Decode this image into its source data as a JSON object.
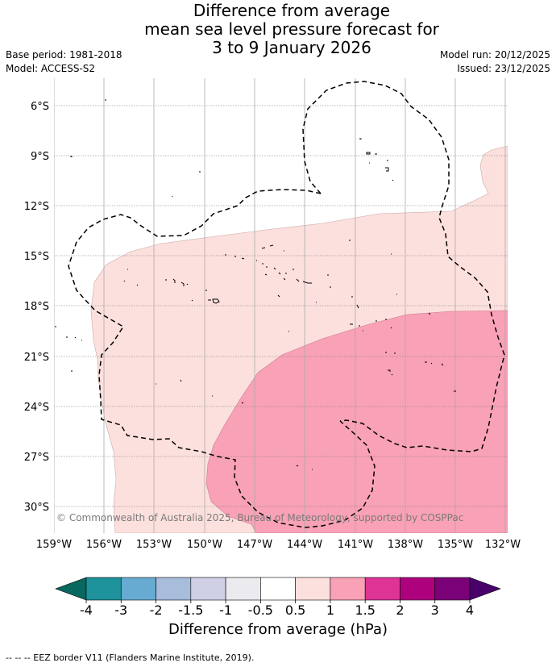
{
  "title": {
    "line1": "Difference from average",
    "line2": "mean sea level pressure forecast for",
    "line3": "3 to 9 January 2026"
  },
  "meta": {
    "base_period": "Base period: 1981-2018",
    "model": "Model: ACCESS-S2",
    "model_run": "Model run: 20/12/2025",
    "issued": "Issued: 23/12/2025"
  },
  "map": {
    "lat_labels": [
      "6°S",
      "9°S",
      "12°S",
      "15°S",
      "18°S",
      "21°S",
      "24°S",
      "27°S",
      "30°S"
    ],
    "lon_labels": [
      "159°W",
      "156°W",
      "153°W",
      "150°W",
      "147°W",
      "144°W",
      "141°W",
      "138°W",
      "135°W",
      "132°W"
    ],
    "copyright": "© Commonwealth of Australia 2025, Bureau of Meteorology, supported by COSPPac",
    "colors": {
      "anomaly_0_5_to_1": "#fce0dd",
      "anomaly_1_to_1_5": "#f9a1b6"
    }
  },
  "colorbar": {
    "title": "Difference from average (hPa)",
    "labels": [
      "-4",
      "-3",
      "-2",
      "-1.5",
      "-1",
      "-0.5",
      "0.5",
      "1",
      "1.5",
      "2",
      "3",
      "4"
    ],
    "colors": [
      "#08675f",
      "#1e939b",
      "#68abd2",
      "#a8bcdc",
      "#cfd0e6",
      "#ebebef",
      "#ffffff",
      "#fce0dd",
      "#f9a1b6",
      "#de3496",
      "#ae017e",
      "#7a0177",
      "#49006a"
    ]
  },
  "footer": {
    "legend": "--  --  -- EEZ border V11 (Flanders Marine Institute, 2019)."
  }
}
